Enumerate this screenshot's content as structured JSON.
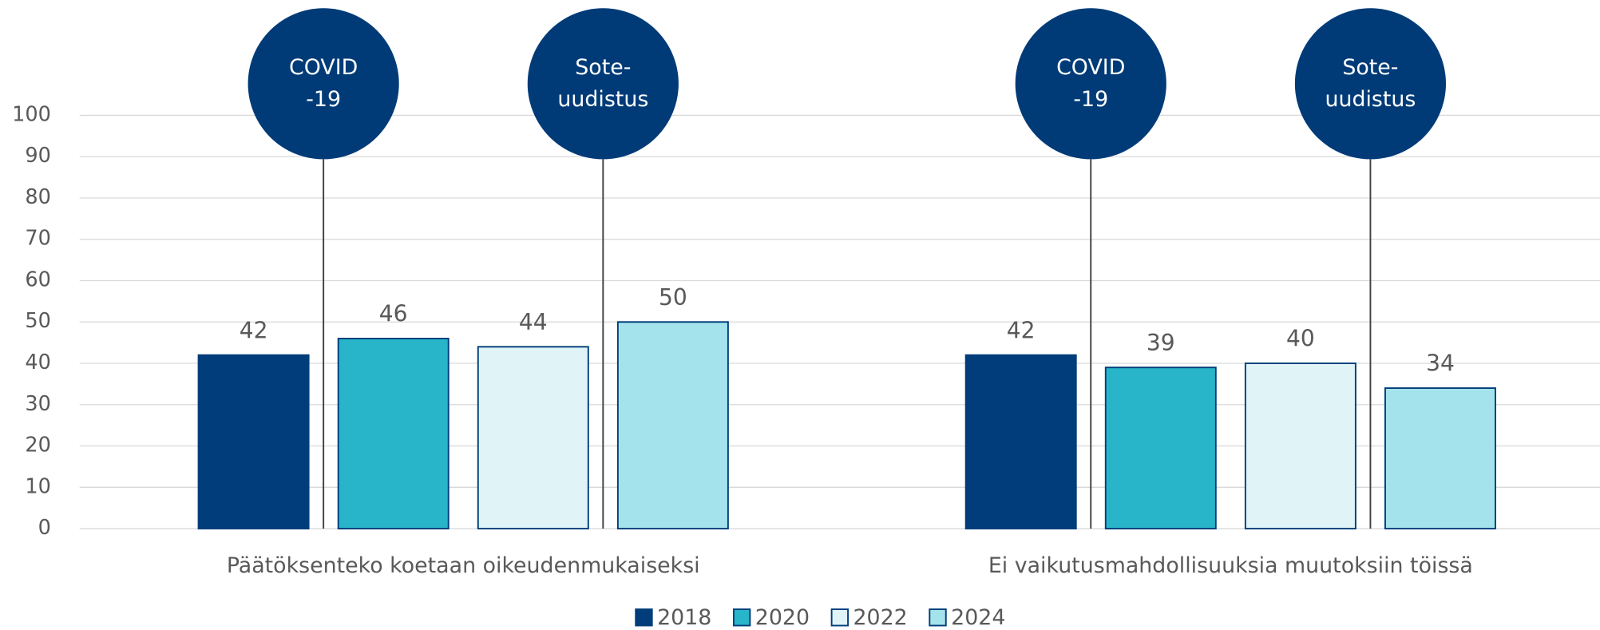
{
  "chart_data": {
    "type": "bar",
    "categories": [
      "Päätöksenteko koetaan oikeudenmukaiseksi",
      "Ei vaikutusmahdollisuuksia muutoksiin töissä"
    ],
    "series": [
      {
        "name": "2018",
        "color": "#003d7a",
        "values": [
          42,
          42
        ]
      },
      {
        "name": "2020",
        "color": "#29b5c9",
        "values": [
          46,
          39
        ]
      },
      {
        "name": "2022",
        "color": "#e0f4f8",
        "values": [
          44,
          40
        ]
      },
      {
        "name": "2024",
        "color": "#a4e3ec",
        "values": [
          50,
          34
        ]
      }
    ],
    "ylim": [
      0,
      100
    ],
    "yticks": [
      0,
      10,
      20,
      30,
      40,
      50,
      60,
      70,
      80,
      90,
      100
    ],
    "grid": true,
    "legend": "bottom",
    "annotations": [
      {
        "lines": [
          "COVID",
          "-19"
        ]
      },
      {
        "lines": [
          "Sote-",
          "uudistus"
        ]
      },
      {
        "lines": [
          "COVID",
          "-19"
        ]
      },
      {
        "lines": [
          "Sote-",
          "uudistus"
        ]
      }
    ]
  }
}
